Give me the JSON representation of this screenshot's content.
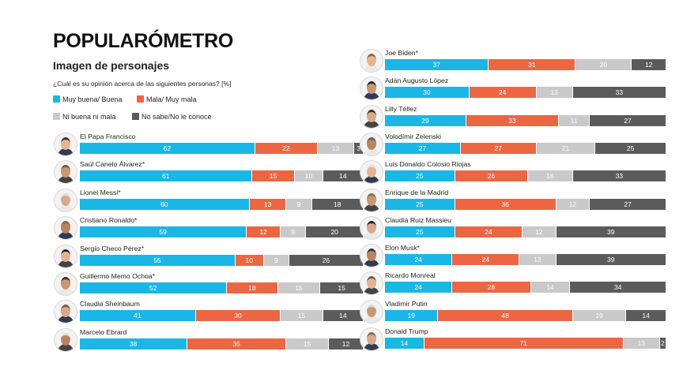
{
  "header": {
    "title": "POPULARÓMETRO",
    "subtitle": "Imagen de personajes",
    "question": "¿Cuál es su opinión acerca de las siguientes personas? [%]"
  },
  "colors": {
    "muy_buena": "#1ab6e6",
    "mala": "#ec6644",
    "ni_buena": "#c9c9c9",
    "no_sabe": "#5b5b5b"
  },
  "chart_data": {
    "type": "bar",
    "orientation": "horizontal",
    "stacked": true,
    "series": [
      {
        "name": "Muy buena/ Buena",
        "color": "#1ab6e6"
      },
      {
        "name": "Mala/ Muy mala",
        "color": "#ec6644"
      },
      {
        "name": "Ni buena ni mala",
        "color": "#c9c9c9"
      },
      {
        "name": "No sabe/No le conoce",
        "color": "#5b5b5b"
      }
    ],
    "people": [
      {
        "name": "El Papa Francisco",
        "values": [
          62,
          22,
          13,
          3
        ]
      },
      {
        "name": "Saúl Canelo Álvarez*",
        "values": [
          61,
          15,
          10,
          14
        ]
      },
      {
        "name": "Lionel Messi*",
        "values": [
          60,
          13,
          9,
          18
        ]
      },
      {
        "name": "Cristiano Ronaldo*",
        "values": [
          59,
          12,
          9,
          20
        ]
      },
      {
        "name": "Sergio Checo Pérez*",
        "values": [
          55,
          10,
          9,
          26
        ]
      },
      {
        "name": "Guillermo Memo Ochoa*",
        "values": [
          52,
          18,
          15,
          15
        ]
      },
      {
        "name": "Claudia Sheinbaum",
        "values": [
          41,
          30,
          15,
          14
        ]
      },
      {
        "name": "Marcelo Ebrard",
        "values": [
          38,
          35,
          15,
          12
        ]
      },
      {
        "name": "Joe Biden*",
        "values": [
          37,
          31,
          20,
          12
        ]
      },
      {
        "name": "Adán Augusto López",
        "values": [
          30,
          24,
          13,
          33
        ]
      },
      {
        "name": "Lilly Téllez",
        "values": [
          29,
          33,
          11,
          27
        ]
      },
      {
        "name": "Volodímir Zelenski",
        "values": [
          27,
          27,
          21,
          25
        ]
      },
      {
        "name": "Luis Donaldo Colosio Riojas",
        "values": [
          25,
          26,
          16,
          33
        ]
      },
      {
        "name": "Enrique de la Madrid",
        "values": [
          25,
          36,
          12,
          27
        ]
      },
      {
        "name": "Claudia Ruiz Massieu",
        "values": [
          25,
          24,
          12,
          39
        ]
      },
      {
        "name": "Elon Musk*",
        "values": [
          24,
          24,
          13,
          39
        ]
      },
      {
        "name": "Ricardo Monreal",
        "values": [
          24,
          28,
          14,
          34
        ]
      },
      {
        "name": "Vladimir Putin",
        "values": [
          19,
          48,
          19,
          14
        ]
      },
      {
        "name": "Donald Trump",
        "values": [
          14,
          71,
          13,
          2
        ]
      }
    ]
  }
}
